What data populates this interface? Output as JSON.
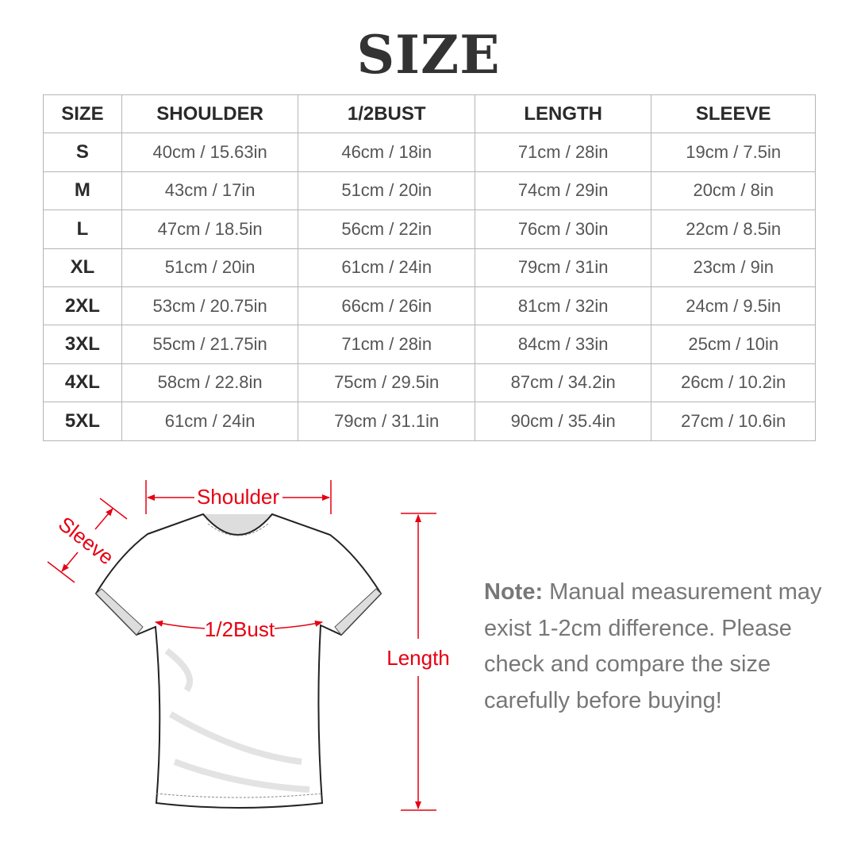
{
  "title": "SIZE",
  "table": {
    "headers": [
      "SIZE",
      "SHOULDER",
      "1/2BUST",
      "LENGTH",
      "SLEEVE"
    ],
    "rows": [
      [
        "S",
        "40cm / 15.63in",
        "46cm / 18in",
        "71cm / 28in",
        "19cm / 7.5in"
      ],
      [
        "M",
        "43cm / 17in",
        "51cm / 20in",
        "74cm / 29in",
        "20cm / 8in"
      ],
      [
        "L",
        "47cm / 18.5in",
        "56cm / 22in",
        "76cm / 30in",
        "22cm / 8.5in"
      ],
      [
        "XL",
        "51cm / 20in",
        "61cm / 24in",
        "79cm / 31in",
        "23cm / 9in"
      ],
      [
        "2XL",
        "53cm / 20.75in",
        "66cm / 26in",
        "81cm / 32in",
        "24cm / 9.5in"
      ],
      [
        "3XL",
        "55cm / 21.75in",
        "71cm / 28in",
        "84cm / 33in",
        "25cm / 10in"
      ],
      [
        "4XL",
        "58cm / 22.8in",
        "75cm / 29.5in",
        "87cm / 34.2in",
        "26cm / 10.2in"
      ],
      [
        "5XL",
        "61cm / 24in",
        "79cm / 31.1in",
        "90cm / 35.4in",
        "27cm / 10.6in"
      ]
    ]
  },
  "diagram": {
    "shoulder": "Shoulder",
    "sleeve": "Sleeve",
    "bust": "1/2Bust",
    "length": "Length",
    "accent_color": "#e60012"
  },
  "note": {
    "label": "Note:",
    "text": "Manual measurement may exist 1-2cm difference. Please check and compare the size carefully before buying!"
  }
}
